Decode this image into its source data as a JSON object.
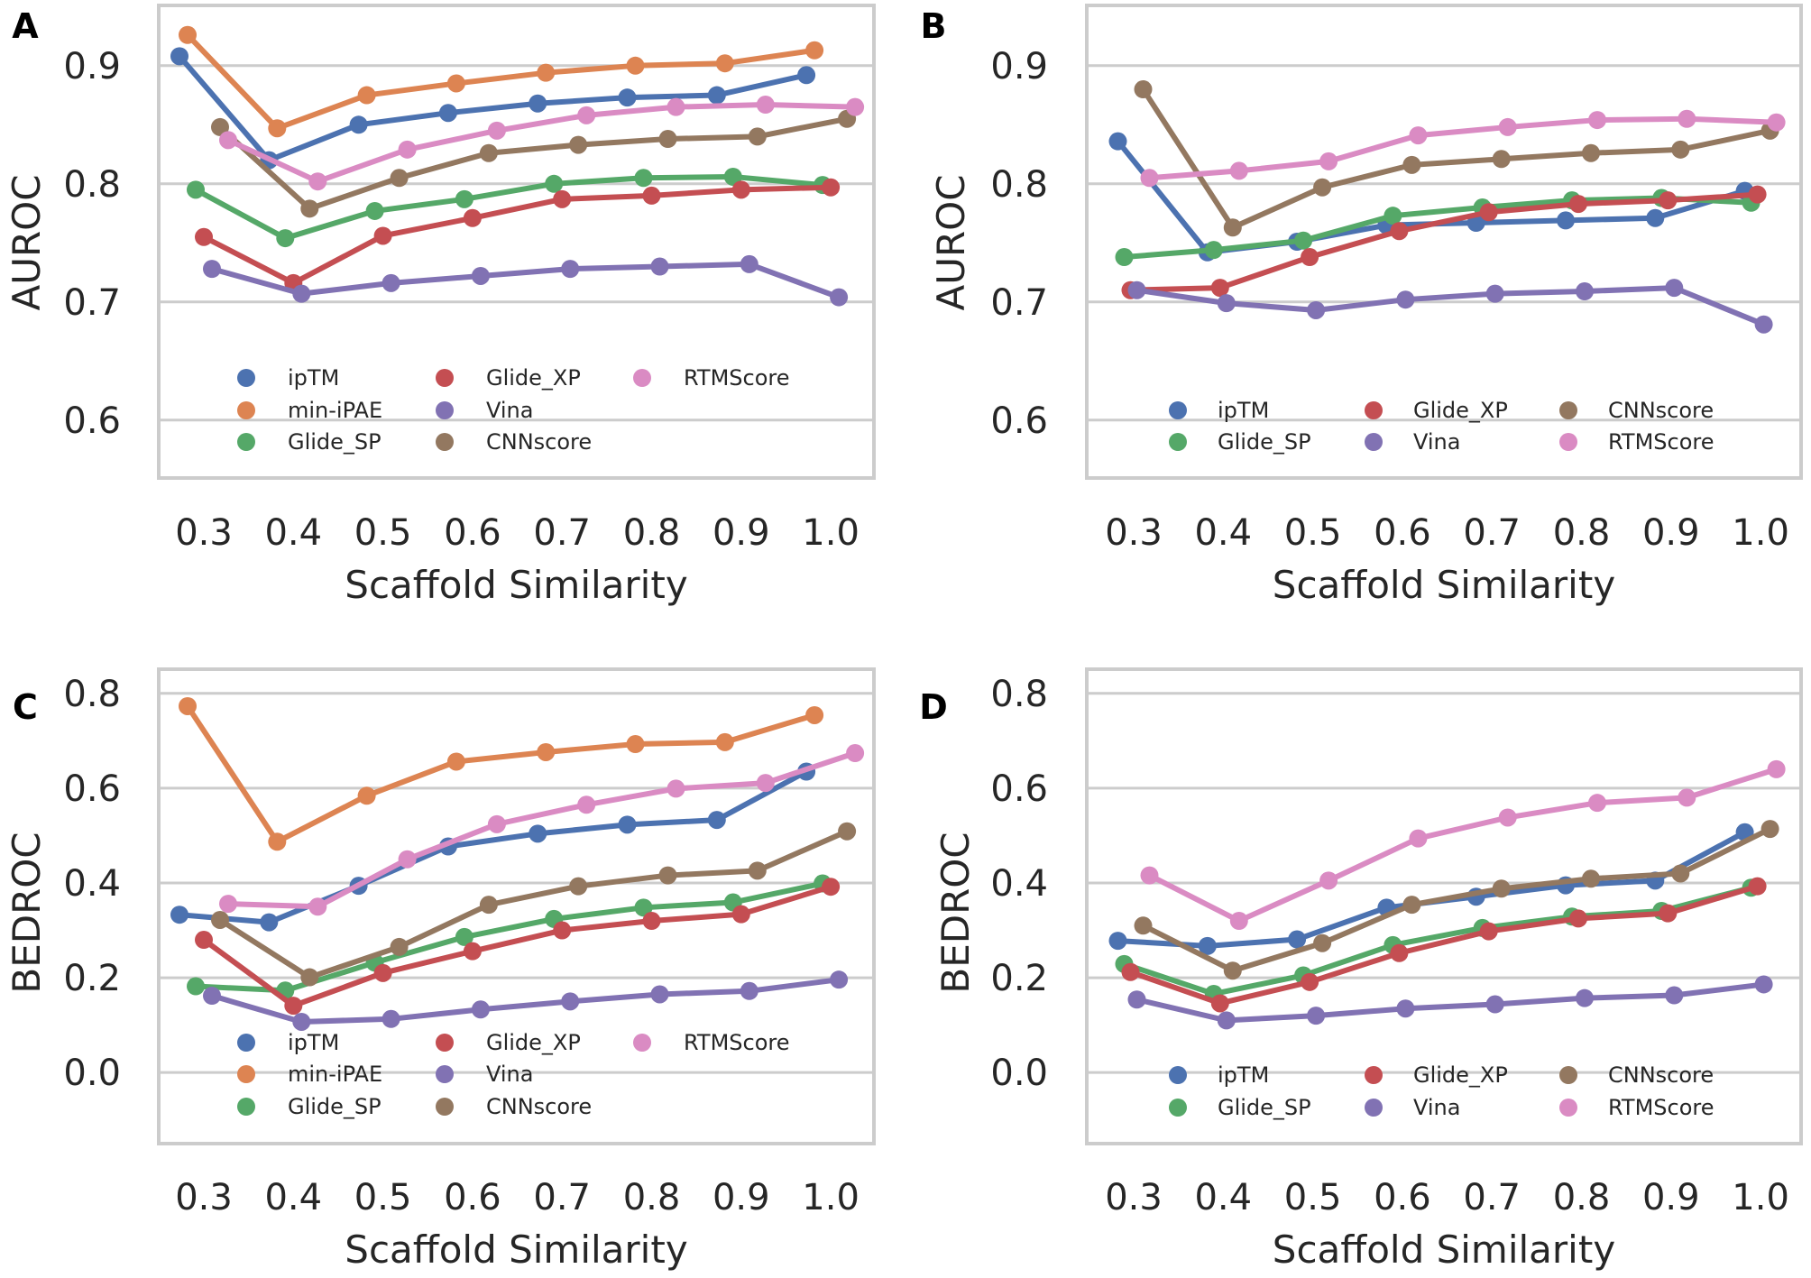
{
  "figure": {
    "description": "Four-panel line plot of virtual screening performance vs scaffold similarity"
  },
  "series_colors": {
    "ipTM": "#4C72B0",
    "min-iPAE": "#DD8452",
    "Glide_SP": "#55A868",
    "Glide_XP": "#C44E52",
    "Vina": "#8172B3",
    "CNNscore": "#937860",
    "RTMScore": "#DA8BC3"
  },
  "chart_data": [
    {
      "panel": "A",
      "type": "line",
      "title": "",
      "xlabel": "Scaffold Similarity",
      "ylabel": "AUROC",
      "categories": [
        "0.3",
        "0.4",
        "0.5",
        "0.6",
        "0.7",
        "0.8",
        "0.9",
        "1.0"
      ],
      "yticks": [
        "0.6",
        "0.7",
        "0.8",
        "0.9"
      ],
      "ylim": [
        0.551,
        0.951
      ],
      "grid": true,
      "legend_position": "lower-center",
      "legend_order": [
        "ipTM",
        "min-iPAE",
        "Glide_SP",
        "Glide_XP",
        "Vina",
        "CNNscore",
        "RTMScore"
      ],
      "series": [
        {
          "name": "ipTM",
          "values": [
            0.908,
            0.82,
            0.85,
            0.86,
            0.868,
            0.873,
            0.875,
            0.892
          ]
        },
        {
          "name": "min-iPAE",
          "values": [
            0.926,
            0.847,
            0.875,
            0.885,
            0.894,
            0.9,
            0.902,
            0.913
          ]
        },
        {
          "name": "Glide_SP",
          "values": [
            0.795,
            0.754,
            0.777,
            0.787,
            0.8,
            0.805,
            0.806,
            0.799
          ]
        },
        {
          "name": "Glide_XP",
          "values": [
            0.755,
            0.716,
            0.756,
            0.771,
            0.787,
            0.79,
            0.795,
            0.797
          ]
        },
        {
          "name": "Vina",
          "values": [
            0.728,
            0.707,
            0.716,
            0.722,
            0.728,
            0.73,
            0.732,
            0.704
          ]
        },
        {
          "name": "CNNscore",
          "values": [
            0.848,
            0.779,
            0.805,
            0.826,
            0.833,
            0.838,
            0.84,
            0.855
          ]
        },
        {
          "name": "RTMScore",
          "values": [
            0.837,
            0.802,
            0.829,
            0.845,
            0.858,
            0.865,
            0.867,
            0.865
          ]
        }
      ]
    },
    {
      "panel": "B",
      "type": "line",
      "title": "",
      "xlabel": "Scaffold Similarity",
      "ylabel": "AUROC",
      "categories": [
        "0.3",
        "0.4",
        "0.5",
        "0.6",
        "0.7",
        "0.8",
        "0.9",
        "1.0"
      ],
      "yticks": [
        "0.6",
        "0.7",
        "0.8",
        "0.9"
      ],
      "ylim": [
        0.551,
        0.951
      ],
      "grid": true,
      "legend_position": "lower-center",
      "legend_order": [
        "ipTM",
        "Glide_SP",
        "Glide_XP",
        "Vina",
        "CNNscore",
        "RTMScore"
      ],
      "series": [
        {
          "name": "ipTM",
          "values": [
            0.836,
            0.742,
            0.751,
            0.765,
            0.767,
            0.769,
            0.771,
            0.794
          ]
        },
        {
          "name": "Glide_SP",
          "values": [
            0.738,
            0.744,
            0.752,
            0.773,
            0.78,
            0.786,
            0.788,
            0.784
          ]
        },
        {
          "name": "Glide_XP",
          "values": [
            0.71,
            0.712,
            0.738,
            0.76,
            0.776,
            0.783,
            0.786,
            0.791
          ]
        },
        {
          "name": "Vina",
          "values": [
            0.71,
            0.699,
            0.693,
            0.702,
            0.707,
            0.709,
            0.712,
            0.681
          ]
        },
        {
          "name": "CNNscore",
          "values": [
            0.88,
            0.763,
            0.797,
            0.816,
            0.821,
            0.826,
            0.829,
            0.845
          ]
        },
        {
          "name": "RTMScore",
          "values": [
            0.805,
            0.811,
            0.819,
            0.841,
            0.848,
            0.854,
            0.855,
            0.852
          ]
        }
      ]
    },
    {
      "panel": "C",
      "type": "line",
      "title": "",
      "xlabel": "Scaffold Similarity",
      "ylabel": "BEDROC",
      "categories": [
        "0.3",
        "0.4",
        "0.5",
        "0.6",
        "0.7",
        "0.8",
        "0.9",
        "1.0"
      ],
      "yticks": [
        "0.0",
        "0.2",
        "0.4",
        "0.6",
        "0.8"
      ],
      "ylim": [
        -0.15,
        0.851
      ],
      "grid": true,
      "legend_position": "lower-center",
      "legend_order": [
        "ipTM",
        "min-iPAE",
        "Glide_SP",
        "Glide_XP",
        "Vina",
        "CNNscore",
        "RTMScore"
      ],
      "series": [
        {
          "name": "ipTM",
          "values": [
            0.333,
            0.317,
            0.394,
            0.477,
            0.504,
            0.523,
            0.533,
            0.635
          ]
        },
        {
          "name": "min-iPAE",
          "values": [
            0.773,
            0.487,
            0.584,
            0.656,
            0.676,
            0.693,
            0.697,
            0.754
          ]
        },
        {
          "name": "Glide_SP",
          "values": [
            0.182,
            0.173,
            0.232,
            0.286,
            0.324,
            0.348,
            0.359,
            0.399
          ]
        },
        {
          "name": "Glide_XP",
          "values": [
            0.28,
            0.141,
            0.21,
            0.256,
            0.3,
            0.32,
            0.334,
            0.392
          ]
        },
        {
          "name": "Vina",
          "values": [
            0.162,
            0.107,
            0.113,
            0.133,
            0.15,
            0.165,
            0.172,
            0.196
          ]
        },
        {
          "name": "CNNscore",
          "values": [
            0.322,
            0.201,
            0.265,
            0.354,
            0.393,
            0.416,
            0.426,
            0.509
          ]
        },
        {
          "name": "RTMScore",
          "values": [
            0.356,
            0.35,
            0.45,
            0.524,
            0.565,
            0.599,
            0.611,
            0.674
          ]
        }
      ]
    },
    {
      "panel": "D",
      "type": "line",
      "title": "",
      "xlabel": "Scaffold Similarity",
      "ylabel": "BEDROC",
      "categories": [
        "0.3",
        "0.4",
        "0.5",
        "0.6",
        "0.7",
        "0.8",
        "0.9",
        "1.0"
      ],
      "yticks": [
        "0.0",
        "0.2",
        "0.4",
        "0.6",
        "0.8"
      ],
      "ylim": [
        -0.15,
        0.851
      ],
      "grid": true,
      "legend_position": "lower-center",
      "legend_order": [
        "ipTM",
        "Glide_SP",
        "Glide_XP",
        "Vina",
        "CNNscore",
        "RTMScore"
      ],
      "series": [
        {
          "name": "ipTM",
          "values": [
            0.278,
            0.267,
            0.281,
            0.348,
            0.371,
            0.395,
            0.405,
            0.507
          ]
        },
        {
          "name": "Glide_SP",
          "values": [
            0.229,
            0.166,
            0.205,
            0.269,
            0.305,
            0.329,
            0.341,
            0.39
          ]
        },
        {
          "name": "Glide_XP",
          "values": [
            0.212,
            0.146,
            0.191,
            0.252,
            0.298,
            0.325,
            0.336,
            0.393
          ]
        },
        {
          "name": "Vina",
          "values": [
            0.154,
            0.11,
            0.12,
            0.135,
            0.144,
            0.157,
            0.163,
            0.186
          ]
        },
        {
          "name": "CNNscore",
          "values": [
            0.31,
            0.215,
            0.273,
            0.354,
            0.388,
            0.409,
            0.42,
            0.514
          ]
        },
        {
          "name": "RTMScore",
          "values": [
            0.416,
            0.32,
            0.405,
            0.494,
            0.538,
            0.569,
            0.58,
            0.64
          ]
        }
      ]
    }
  ]
}
